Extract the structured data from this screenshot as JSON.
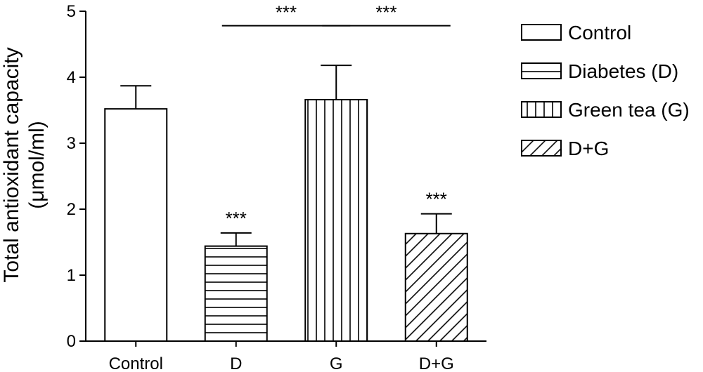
{
  "chart_data": {
    "type": "bar",
    "ylabel": "Total antioxidant capacity",
    "ylabel_unit": "(μmol/ml)",
    "ylim": [
      0,
      5
    ],
    "yticks": [
      "0",
      "1",
      "2",
      "3",
      "4",
      "5"
    ],
    "categories": [
      "Control",
      "D",
      "G",
      "D+G"
    ],
    "values": [
      3.52,
      1.44,
      3.66,
      1.63
    ],
    "errors": [
      0.35,
      0.2,
      0.52,
      0.3
    ],
    "patterns": [
      "none",
      "horizontal",
      "vertical",
      "diagonal"
    ],
    "bar_annotations": [
      "",
      "***",
      "",
      "***"
    ],
    "brackets": [
      {
        "from": "D",
        "to": "G",
        "label": "***",
        "y": 4.78
      },
      {
        "from": "G",
        "to": "D+G",
        "label": "***",
        "y": 4.78
      }
    ],
    "legend": {
      "position": "right",
      "entries": [
        {
          "label": "Control",
          "pattern": "none"
        },
        {
          "label": "Diabetes (D)",
          "pattern": "horizontal"
        },
        {
          "label": "Green tea (G)",
          "pattern": "vertical"
        },
        {
          "label": "D+G",
          "pattern": "diagonal"
        }
      ]
    },
    "grid": false
  }
}
